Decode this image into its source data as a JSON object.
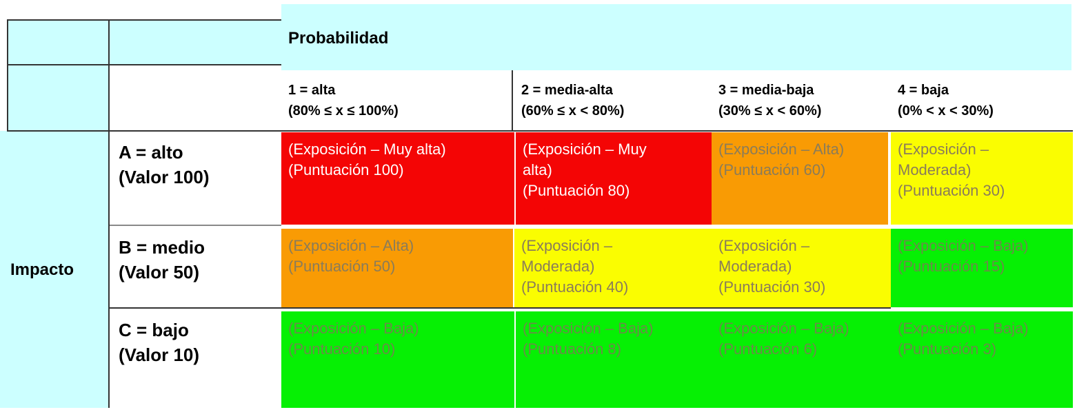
{
  "header": {
    "probabilidad": "Probabilidad",
    "impacto": "Impacto"
  },
  "columns": [
    {
      "line1": "1 = alta",
      "line2": "(80% ≤ x ≤ 100%)"
    },
    {
      "line1": "2 = media-alta",
      "line2": "(60% ≤ x < 80%)"
    },
    {
      "line1": "3 = media-baja",
      "line2": "(30% ≤ x < 60%)"
    },
    {
      "line1": "4 = baja",
      "line2": "(0% < x < 30%)"
    }
  ],
  "rows": [
    {
      "line1": "A = alto",
      "line2": "(Valor 100)"
    },
    {
      "line1": "B = medio",
      "line2": "(Valor 50)"
    },
    {
      "line1": "C = bajo",
      "line2": "(Valor 10)"
    }
  ],
  "cells": [
    [
      {
        "lines": [
          "(Exposición – Muy alta)",
          "(Puntuación 100)"
        ],
        "color": "#f40505"
      },
      {
        "lines": [
          "(Exposición – Muy",
          "alta)",
          "(Puntuación 80)"
        ],
        "color": "#f40505"
      },
      {
        "lines": [
          "(Exposición – Alta)",
          "(Puntuación 60)"
        ],
        "color": "#f99b04"
      },
      {
        "lines": [
          "(Exposición –",
          "Moderada)",
          "(Puntuación 30)"
        ],
        "color": "#fafd01"
      }
    ],
    [
      {
        "lines": [
          "(Exposición – Alta)",
          "(Puntuación 50)"
        ],
        "color": "#f99b04"
      },
      {
        "lines": [
          "(Exposición –",
          "Moderada)",
          "(Puntuación 40)"
        ],
        "color": "#fafd01"
      },
      {
        "lines": [
          "(Exposición –",
          "Moderada)",
          "(Puntuación 30)"
        ],
        "color": "#fafd01"
      },
      {
        "lines": [
          "(Exposición – Baja)",
          "(Puntuación 15)"
        ],
        "color": "#06f004"
      }
    ],
    [
      {
        "lines": [
          "(Exposición – Baja)",
          "(Puntuación 10)"
        ],
        "color": "#06f004"
      },
      {
        "lines": [
          "(Exposición – Baja)",
          "(Puntuación 8)"
        ],
        "color": "#06f004"
      },
      {
        "lines": [
          "(Exposición – Baja)",
          "(Puntuación 6)"
        ],
        "color": "#06f004"
      },
      {
        "lines": [
          "(Exposición – Baja)",
          "(Puntuación 3)"
        ],
        "color": "#06f004"
      }
    ]
  ]
}
